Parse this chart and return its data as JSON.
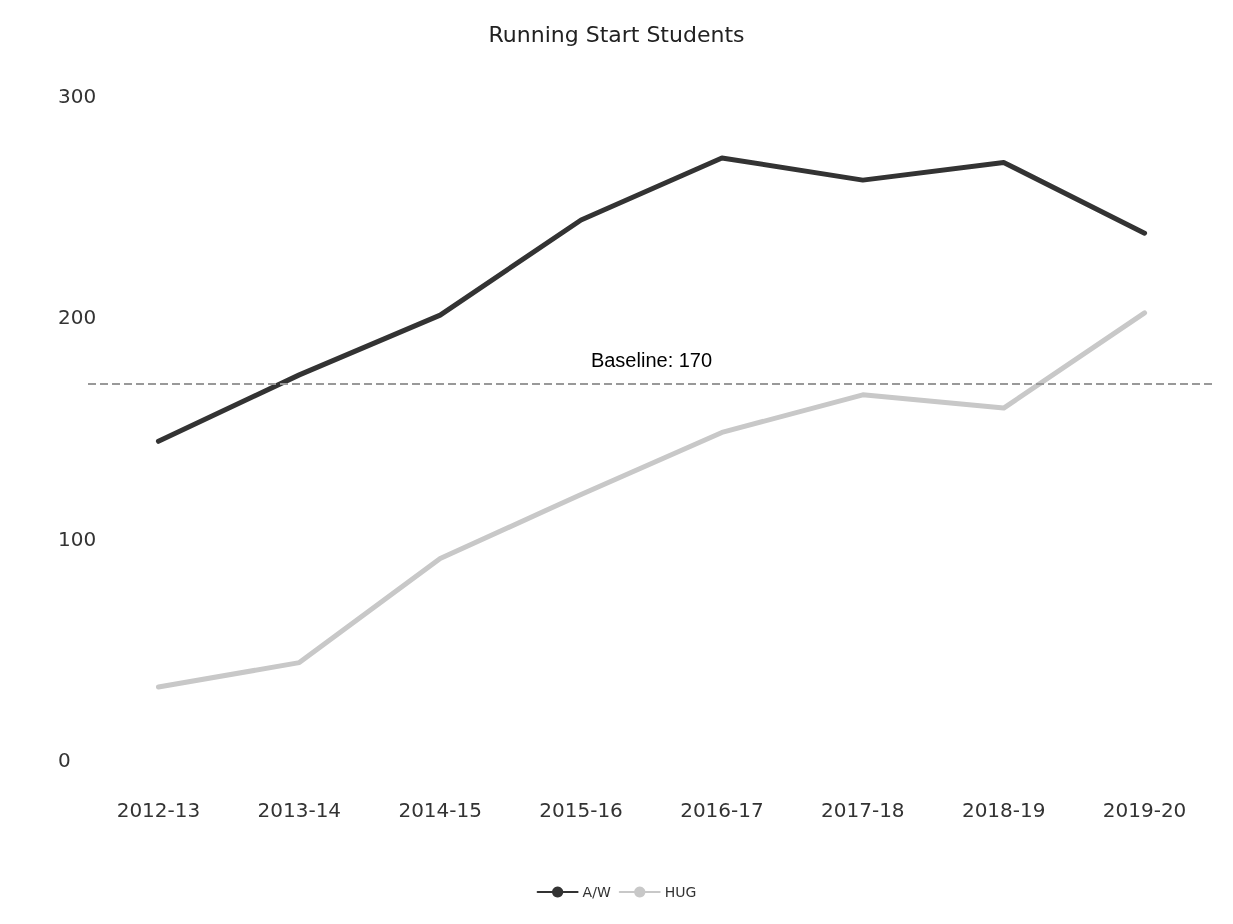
{
  "chart_data": {
    "type": "line",
    "title": "Running Start Students",
    "categories": [
      "2012-13",
      "2013-14",
      "2014-15",
      "2015-16",
      "2016-17",
      "2017-18",
      "2018-19",
      "2019-20"
    ],
    "series": [
      {
        "name": "A/W",
        "color": "#333333",
        "values": [
          144,
          174,
          201,
          244,
          272,
          262,
          270,
          238
        ]
      },
      {
        "name": "HUG",
        "color": "#c8c8c8",
        "values": [
          33,
          44,
          91,
          120,
          148,
          165,
          159,
          202
        ]
      }
    ],
    "ylim": [
      0,
      300
    ],
    "yticks": [
      0,
      100,
      200,
      300
    ],
    "grid": false,
    "legend": "bottom",
    "marker": "none",
    "line_style": "solid",
    "ref_lines": [
      {
        "axis": "y",
        "value": 170,
        "label": "Baseline: 170",
        "color": "#999999",
        "line_style": "dashed"
      }
    ]
  }
}
